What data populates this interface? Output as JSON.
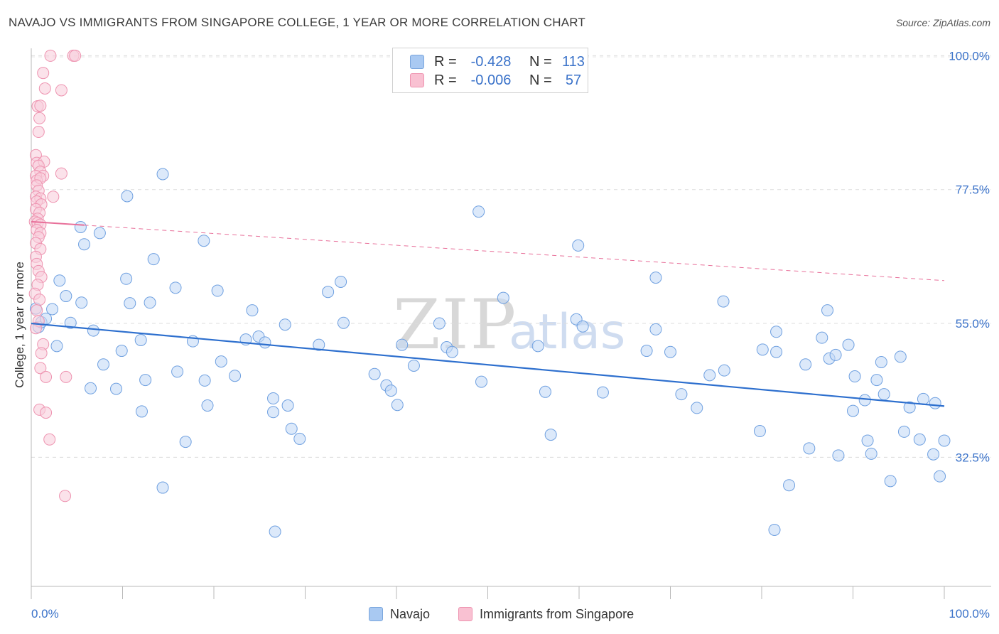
{
  "title": "NAVAJO VS IMMIGRANTS FROM SINGAPORE COLLEGE, 1 YEAR OR MORE CORRELATION CHART",
  "source": "Source: ZipAtlas.com",
  "watermark": {
    "zip": "ZIP",
    "atlas": "atlas"
  },
  "legend": {
    "rows": [
      {
        "r_label": "R =",
        "r_value": "-0.428",
        "n_label": "N =",
        "n_value": "113",
        "color": "#a9c9f2"
      },
      {
        "r_label": "R =",
        "r_value": "-0.006",
        "n_label": "N =",
        "n_value": "57",
        "color": "#f9c1d2"
      }
    ]
  },
  "bottom_legend": [
    {
      "label": "Navajo",
      "color": "#a9c9f2"
    },
    {
      "label": "Immigrants from Singapore",
      "color": "#f9c1d2"
    }
  ],
  "chart_data": {
    "type": "scatter",
    "title": "NAVAJO VS IMMIGRANTS FROM SINGAPORE COLLEGE, 1 YEAR OR MORE CORRELATION CHART",
    "xlabel": "",
    "ylabel": "College, 1 year or more",
    "xlim": [
      0,
      100
    ],
    "ylim": [
      10.8,
      102.2
    ],
    "x_tick_labels": [
      {
        "value": 0,
        "label": "0.0%"
      },
      {
        "value": 100,
        "label": "100.0%"
      }
    ],
    "y_tick_labels": [
      {
        "value": 100,
        "label": "100.0%"
      },
      {
        "value": 77.5,
        "label": "77.5%"
      },
      {
        "value": 55,
        "label": "55.0%"
      },
      {
        "value": 32.5,
        "label": "32.5%"
      }
    ],
    "grid": true,
    "series": [
      {
        "name": "Navajo",
        "color": "#6fa0e0",
        "fill": "#c5daf6",
        "r": -0.428,
        "n": 113,
        "trend": {
          "x": [
            0,
            100
          ],
          "y": [
            55.0,
            41.1
          ],
          "style": "solid",
          "color": "#2d6fce"
        },
        "points": [
          [
            0.5,
            57.5
          ],
          [
            0.8,
            54.4
          ],
          [
            1.1,
            55.2
          ],
          [
            1.6,
            55.8
          ],
          [
            2.3,
            57.4
          ],
          [
            2.8,
            51.2
          ],
          [
            3.1,
            62.2
          ],
          [
            3.8,
            59.6
          ],
          [
            4.3,
            55.1
          ],
          [
            5.4,
            71.2
          ],
          [
            5.5,
            58.5
          ],
          [
            5.8,
            68.3
          ],
          [
            6.5,
            44.1
          ],
          [
            6.8,
            53.8
          ],
          [
            7.5,
            70.2
          ],
          [
            7.9,
            48.1
          ],
          [
            9.3,
            44.0
          ],
          [
            9.9,
            50.4
          ],
          [
            10.5,
            76.4
          ],
          [
            10.4,
            62.5
          ],
          [
            10.8,
            58.4
          ],
          [
            12.0,
            52.2
          ],
          [
            12.1,
            40.2
          ],
          [
            12.5,
            45.5
          ],
          [
            13.0,
            58.5
          ],
          [
            13.4,
            65.8
          ],
          [
            14.4,
            80.1
          ],
          [
            14.4,
            27.4
          ],
          [
            15.8,
            61.0
          ],
          [
            16.0,
            46.9
          ],
          [
            16.9,
            35.1
          ],
          [
            17.7,
            52.0
          ],
          [
            18.9,
            68.9
          ],
          [
            19.0,
            45.4
          ],
          [
            19.3,
            41.2
          ],
          [
            20.4,
            60.5
          ],
          [
            20.8,
            48.6
          ],
          [
            22.3,
            46.2
          ],
          [
            23.5,
            52.3
          ],
          [
            24.2,
            57.2
          ],
          [
            24.9,
            52.8
          ],
          [
            25.6,
            51.8
          ],
          [
            26.5,
            40.1
          ],
          [
            26.5,
            42.4
          ],
          [
            27.8,
            54.8
          ],
          [
            28.1,
            41.2
          ],
          [
            28.5,
            37.3
          ],
          [
            29.4,
            35.6
          ],
          [
            26.7,
            20.0
          ],
          [
            31.5,
            51.4
          ],
          [
            32.5,
            60.3
          ],
          [
            33.9,
            62.0
          ],
          [
            34.2,
            55.1
          ],
          [
            37.6,
            46.5
          ],
          [
            38.9,
            44.6
          ],
          [
            39.4,
            43.7
          ],
          [
            40.1,
            41.3
          ],
          [
            40.6,
            51.4
          ],
          [
            41.9,
            47.9
          ],
          [
            44.7,
            55.0
          ],
          [
            45.5,
            51.0
          ],
          [
            46.1,
            50.2
          ],
          [
            49.0,
            73.8
          ],
          [
            49.3,
            45.2
          ],
          [
            51.7,
            59.3
          ],
          [
            55.5,
            51.2
          ],
          [
            56.3,
            43.5
          ],
          [
            56.9,
            36.3
          ],
          [
            59.7,
            55.7
          ],
          [
            59.9,
            68.1
          ],
          [
            60.4,
            54.5
          ],
          [
            62.6,
            43.4
          ],
          [
            67.4,
            50.4
          ],
          [
            68.4,
            62.7
          ],
          [
            68.4,
            54.0
          ],
          [
            70.0,
            50.2
          ],
          [
            71.2,
            43.1
          ],
          [
            72.9,
            40.8
          ],
          [
            74.3,
            46.3
          ],
          [
            75.8,
            58.7
          ],
          [
            75.9,
            47.1
          ],
          [
            79.8,
            36.9
          ],
          [
            80.1,
            50.6
          ],
          [
            81.4,
            20.3
          ],
          [
            81.6,
            53.6
          ],
          [
            81.6,
            50.2
          ],
          [
            83.0,
            27.8
          ],
          [
            85.2,
            34.0
          ],
          [
            86.6,
            52.6
          ],
          [
            87.2,
            57.2
          ],
          [
            87.4,
            49.1
          ],
          [
            88.4,
            32.8
          ],
          [
            89.5,
            51.4
          ],
          [
            90.0,
            40.3
          ],
          [
            91.3,
            42.1
          ],
          [
            91.6,
            35.3
          ],
          [
            92.0,
            33.1
          ],
          [
            93.1,
            48.5
          ],
          [
            93.4,
            43.1
          ],
          [
            94.1,
            28.5
          ],
          [
            95.2,
            49.4
          ],
          [
            95.6,
            36.8
          ],
          [
            96.2,
            40.9
          ],
          [
            97.3,
            35.5
          ],
          [
            97.7,
            42.3
          ],
          [
            99.0,
            41.6
          ],
          [
            100.0,
            35.3
          ],
          [
            99.5,
            29.3
          ],
          [
            98.8,
            33.0
          ],
          [
            92.6,
            45.5
          ],
          [
            90.2,
            46.1
          ],
          [
            84.8,
            48.1
          ],
          [
            88.1,
            49.7
          ]
        ]
      },
      {
        "name": "Immigrants from Singapore",
        "color": "#ee93b0",
        "fill": "#f9cfdc",
        "r": -0.006,
        "n": 57,
        "trend": {
          "x": [
            0,
            100
          ],
          "y": [
            72.1,
            62.2
          ],
          "style": "solid-then-dashed",
          "solid_until_x": 5.8,
          "color": "#e8709a"
        },
        "points": [
          [
            2.1,
            100.0
          ],
          [
            4.6,
            100.0
          ],
          [
            4.8,
            100.0
          ],
          [
            1.3,
            97.1
          ],
          [
            1.5,
            94.5
          ],
          [
            3.3,
            94.2
          ],
          [
            0.7,
            91.5
          ],
          [
            1.0,
            91.6
          ],
          [
            0.9,
            89.5
          ],
          [
            0.8,
            87.2
          ],
          [
            0.5,
            83.3
          ],
          [
            0.6,
            82.0
          ],
          [
            1.4,
            82.2
          ],
          [
            0.8,
            81.5
          ],
          [
            1.0,
            80.5
          ],
          [
            1.3,
            79.8
          ],
          [
            3.3,
            80.2
          ],
          [
            0.5,
            79.8
          ],
          [
            0.6,
            79.0
          ],
          [
            1.0,
            79.4
          ],
          [
            0.6,
            78.2
          ],
          [
            0.8,
            77.3
          ],
          [
            0.5,
            76.3
          ],
          [
            1.0,
            76.0
          ],
          [
            2.4,
            76.3
          ],
          [
            0.6,
            75.5
          ],
          [
            1.1,
            75.0
          ],
          [
            0.5,
            74.2
          ],
          [
            0.9,
            73.6
          ],
          [
            0.7,
            72.6
          ],
          [
            0.4,
            72.1
          ],
          [
            0.7,
            71.9
          ],
          [
            1.0,
            71.6
          ],
          [
            0.6,
            70.7
          ],
          [
            1.0,
            70.2
          ],
          [
            0.8,
            69.5
          ],
          [
            0.5,
            68.5
          ],
          [
            1.0,
            67.5
          ],
          [
            0.5,
            66.2
          ],
          [
            0.6,
            65.0
          ],
          [
            0.8,
            63.8
          ],
          [
            1.1,
            62.8
          ],
          [
            0.7,
            61.5
          ],
          [
            0.4,
            60.0
          ],
          [
            0.9,
            59.0
          ],
          [
            0.6,
            57.2
          ],
          [
            0.8,
            55.4
          ],
          [
            0.5,
            54.2
          ],
          [
            1.3,
            51.5
          ],
          [
            1.1,
            50.0
          ],
          [
            1.0,
            47.5
          ],
          [
            1.6,
            46.0
          ],
          [
            3.8,
            46.0
          ],
          [
            0.9,
            40.5
          ],
          [
            1.6,
            40.0
          ],
          [
            2.0,
            35.5
          ],
          [
            3.7,
            26.0
          ]
        ]
      }
    ]
  }
}
